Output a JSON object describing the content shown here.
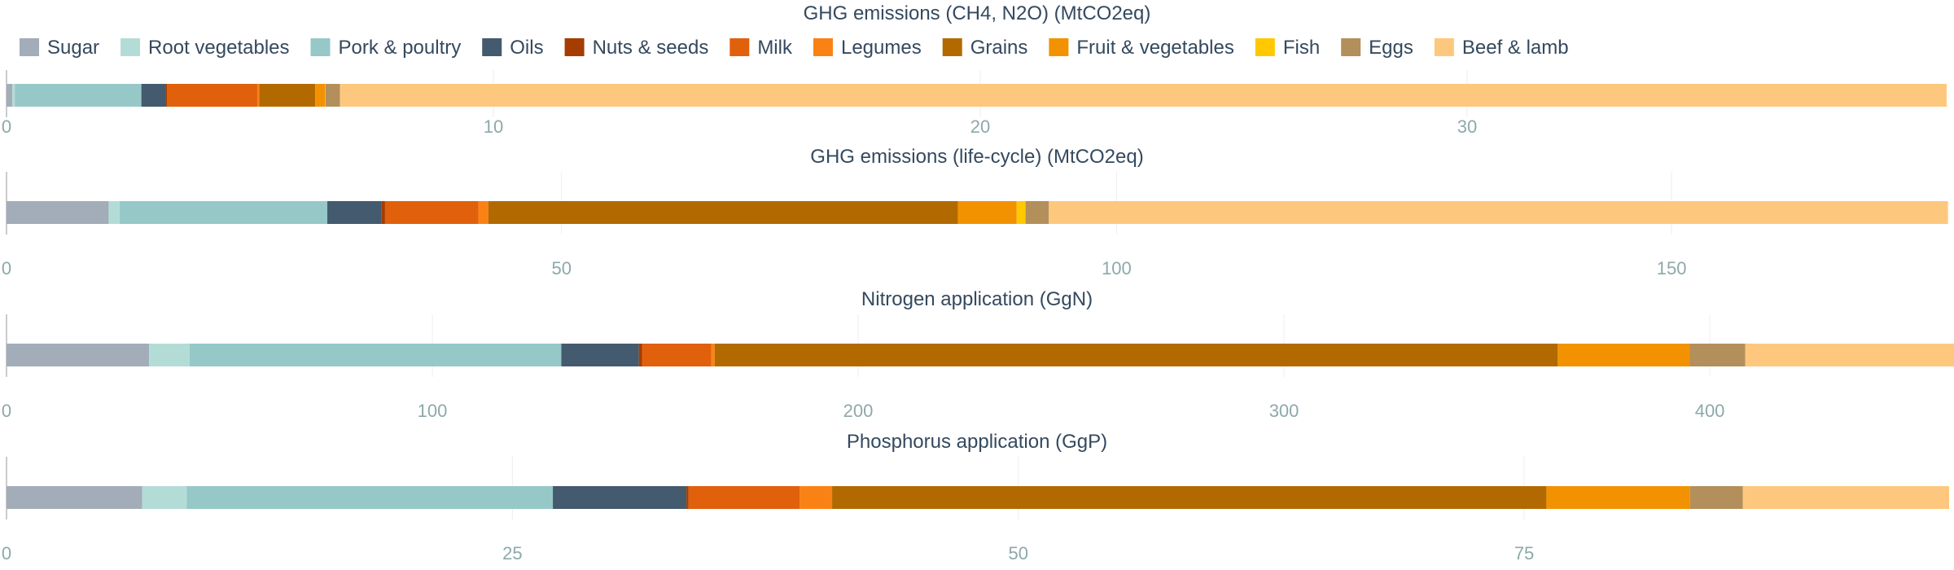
{
  "chart_data": {
    "type": "bar",
    "orientation": "horizontal-stacked",
    "legend_position": "top-left",
    "grid": true,
    "series": [
      {
        "name": "Sugar",
        "color": "#a2adb9"
      },
      {
        "name": "Root vegetables",
        "color": "#b4dcd7"
      },
      {
        "name": "Pork & poultry",
        "color": "#96c8c8"
      },
      {
        "name": "Oils",
        "color": "#445a6e"
      },
      {
        "name": "Nuts & seeds",
        "color": "#a53c00"
      },
      {
        "name": "Milk",
        "color": "#e0600c"
      },
      {
        "name": "Legumes",
        "color": "#fa8214"
      },
      {
        "name": "Grains",
        "color": "#b26a00"
      },
      {
        "name": "Fruit & vegetables",
        "color": "#f39200"
      },
      {
        "name": "Fish",
        "color": "#ffc800"
      },
      {
        "name": "Eggs",
        "color": "#b38f5c"
      },
      {
        "name": "Beef & lamb",
        "color": "#fdc87d"
      }
    ],
    "panels": [
      {
        "title": "GHG emissions (CH4, N2O) (MtCO2eq)",
        "values": [
          0.12,
          0.05,
          2.6,
          0.5,
          0.03,
          1.85,
          0.04,
          1.15,
          0.2,
          0.01,
          0.3,
          33.0
        ],
        "xlim": [
          0,
          39.9
        ],
        "ticks": [
          0,
          10,
          20,
          30
        ]
      },
      {
        "title": "GHG emissions (life-cycle) (MtCO2eq)",
        "values": [
          9.2,
          1.0,
          18.7,
          4.9,
          0.3,
          8.4,
          0.9,
          42.3,
          5.3,
          0.8,
          2.1,
          81.0
        ],
        "xlim": [
          0,
          175
        ],
        "ticks": [
          0,
          50,
          100,
          150
        ]
      },
      {
        "title": "Nitrogen application (GgN)",
        "values": [
          33.5,
          9.5,
          87.3,
          18.2,
          0.8,
          16.2,
          0.8,
          198.0,
          31.0,
          0.0,
          13.0,
          50.0
        ],
        "xlim": [
          0,
          456.2
        ],
        "ticks": [
          0,
          100,
          200,
          300,
          400
        ]
      },
      {
        "title": "Phosphorus application (GgP)",
        "values": [
          6.7,
          2.2,
          18.1,
          6.6,
          0.1,
          5.5,
          1.6,
          35.3,
          7.1,
          0.0,
          2.6,
          10.2
        ],
        "xlim": [
          0,
          96
        ],
        "ticks": [
          0,
          25,
          50,
          75
        ]
      }
    ]
  }
}
